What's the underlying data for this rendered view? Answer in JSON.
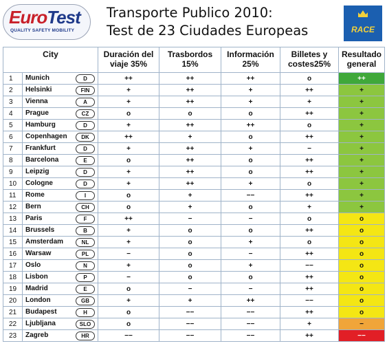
{
  "logo": {
    "euro": "Euro",
    "test": "Test",
    "tagline": "QUALITY SAFETY MOBILITY"
  },
  "title": {
    "line1": "Transporte Publico  2010:",
    "line2": "Test de 23 Ciudades Europeas"
  },
  "race_logo": {
    "text": "RACE",
    "color": "#1b5fb0"
  },
  "table": {
    "headers": {
      "city": "City",
      "duration": "Duración del viaje 35%",
      "transfers": "Trasbordos 15%",
      "info": "Información 25%",
      "tickets": "Billetes y costes25%",
      "result": "Resultado general"
    },
    "rows": [
      {
        "n": "1",
        "city": "Munich",
        "code": "D",
        "d": "++",
        "t": "++",
        "i": "++",
        "c": "o",
        "r": "++",
        "rc": "green"
      },
      {
        "n": "2",
        "city": "Helsinki",
        "code": "FIN",
        "d": "+",
        "t": "++",
        "i": "+",
        "c": "++",
        "r": "+",
        "rc": "lgreen"
      },
      {
        "n": "3",
        "city": "Vienna",
        "code": "A",
        "d": "+",
        "t": "++",
        "i": "+",
        "c": "+",
        "r": "+",
        "rc": "lgreen"
      },
      {
        "n": "4",
        "city": "Prague",
        "code": "CZ",
        "d": "o",
        "t": "o",
        "i": "o",
        "c": "++",
        "r": "+",
        "rc": "lgreen"
      },
      {
        "n": "5",
        "city": "Hamburg",
        "code": "D",
        "d": "+",
        "t": "++",
        "i": "++",
        "c": "o",
        "r": "+",
        "rc": "lgreen"
      },
      {
        "n": "6",
        "city": "Copenhagen",
        "code": "DK",
        "d": "++",
        "t": "+",
        "i": "o",
        "c": "++",
        "r": "+",
        "rc": "lgreen"
      },
      {
        "n": "7",
        "city": "Frankfurt",
        "code": "D",
        "d": "+",
        "t": "++",
        "i": "+",
        "c": "−",
        "r": "+",
        "rc": "lgreen"
      },
      {
        "n": "8",
        "city": "Barcelona",
        "code": "E",
        "d": "o",
        "t": "++",
        "i": "o",
        "c": "++",
        "r": "+",
        "rc": "lgreen"
      },
      {
        "n": "9",
        "city": "Leipzig",
        "code": "D",
        "d": "+",
        "t": "++",
        "i": "o",
        "c": "++",
        "r": "+",
        "rc": "lgreen"
      },
      {
        "n": "10",
        "city": "Cologne",
        "code": "D",
        "d": "+",
        "t": "++",
        "i": "+",
        "c": "o",
        "r": "+",
        "rc": "lgreen"
      },
      {
        "n": "11",
        "city": "Rome",
        "code": "I",
        "d": "o",
        "t": "+",
        "i": "−−",
        "c": "++",
        "r": "+",
        "rc": "lgreen"
      },
      {
        "n": "12",
        "city": "Bern",
        "code": "CH",
        "d": "o",
        "t": "+",
        "i": "o",
        "c": "+",
        "r": "+",
        "rc": "lgreen"
      },
      {
        "n": "13",
        "city": "Paris",
        "code": "F",
        "d": "++",
        "t": "−",
        "i": "−",
        "c": "o",
        "r": "o",
        "rc": "yellow"
      },
      {
        "n": "14",
        "city": "Brussels",
        "code": "B",
        "d": "+",
        "t": "o",
        "i": "o",
        "c": "++",
        "r": "o",
        "rc": "yellow"
      },
      {
        "n": "15",
        "city": "Amsterdam",
        "code": "NL",
        "d": "+",
        "t": "o",
        "i": "+",
        "c": "o",
        "r": "o",
        "rc": "yellow"
      },
      {
        "n": "16",
        "city": "Warsaw",
        "code": "PL",
        "d": "−",
        "t": "o",
        "i": "−",
        "c": "++",
        "r": "o",
        "rc": "yellow"
      },
      {
        "n": "17",
        "city": "Oslo",
        "code": "N",
        "d": "+",
        "t": "o",
        "i": "+",
        "c": "−−",
        "r": "o",
        "rc": "yellow"
      },
      {
        "n": "18",
        "city": "Lisbon",
        "code": "P",
        "d": "−",
        "t": "o",
        "i": "o",
        "c": "++",
        "r": "o",
        "rc": "yellow"
      },
      {
        "n": "19",
        "city": "Madrid",
        "code": "E",
        "d": "o",
        "t": "−",
        "i": "−",
        "c": "++",
        "r": "o",
        "rc": "yellow"
      },
      {
        "n": "20",
        "city": "London",
        "code": "GB",
        "d": "+",
        "t": "+",
        "i": "++",
        "c": "−−",
        "r": "o",
        "rc": "yellow"
      },
      {
        "n": "21",
        "city": "Budapest",
        "code": "H",
        "d": "o",
        "t": "−−",
        "i": "−−",
        "c": "++",
        "r": "o",
        "rc": "yellow"
      },
      {
        "n": "22",
        "city": "Ljubljana",
        "code": "SLO",
        "d": "o",
        "t": "−−",
        "i": "−−",
        "c": "+",
        "r": "−",
        "rc": "orange"
      },
      {
        "n": "23",
        "city": "Zagreb",
        "code": "HR",
        "d": "−−",
        "t": "−−",
        "i": "−−",
        "c": "++",
        "r": "−−",
        "rc": "red"
      }
    ]
  },
  "colors": {
    "green": "#3fa83a",
    "lgreen": "#8cc63f",
    "yellow": "#f4e614",
    "orange": "#f0a53a",
    "red": "#e21f26"
  }
}
